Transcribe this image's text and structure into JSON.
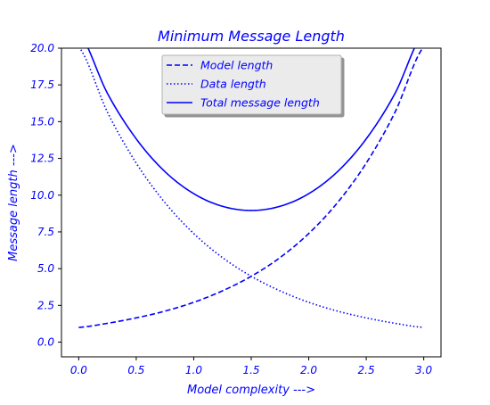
{
  "chart_data": {
    "type": "line",
    "title": "Minimum Message Length",
    "xlabel": "Model complexity --->",
    "ylabel": "Message length --->",
    "xlim": [
      -0.15,
      3.15
    ],
    "ylim": [
      -1.0,
      20.0
    ],
    "xticks": [
      {
        "value": 0.0,
        "label": "0.0"
      },
      {
        "value": 0.5,
        "label": "0.5"
      },
      {
        "value": 1.0,
        "label": "1.0"
      },
      {
        "value": 1.5,
        "label": "1.5"
      },
      {
        "value": 2.0,
        "label": "2.0"
      },
      {
        "value": 2.5,
        "label": "2.5"
      },
      {
        "value": 3.0,
        "label": "3.0"
      }
    ],
    "yticks": [
      {
        "value": 0.0,
        "label": "0.0"
      },
      {
        "value": 2.5,
        "label": "2.5"
      },
      {
        "value": 5.0,
        "label": "5.0"
      },
      {
        "value": 7.5,
        "label": "7.5"
      },
      {
        "value": 10.0,
        "label": "10.0"
      },
      {
        "value": 12.5,
        "label": "12.5"
      },
      {
        "value": 15.0,
        "label": "15.0"
      },
      {
        "value": 17.5,
        "label": "17.5"
      },
      {
        "value": 20.0,
        "label": "20.0"
      }
    ],
    "grid": false,
    "legend_position": "top-center",
    "color": "#0000ff",
    "x": [
      0.0,
      0.25,
      0.5,
      0.75,
      1.0,
      1.25,
      1.5,
      1.75,
      2.0,
      2.25,
      2.5,
      2.75,
      3.0
    ],
    "series": [
      {
        "name": "Model length",
        "style": "dashed",
        "values": [
          1.0,
          1.28,
          1.65,
          2.11,
          2.71,
          3.49,
          4.48,
          5.75,
          7.39,
          9.49,
          12.18,
          15.64,
          20.09
        ]
      },
      {
        "name": "Data length",
        "style": "dotted",
        "values": [
          20.09,
          15.64,
          12.18,
          9.49,
          7.39,
          5.75,
          4.48,
          3.49,
          2.71,
          2.11,
          1.65,
          1.28,
          1.0
        ]
      },
      {
        "name": "Total message length",
        "style": "solid",
        "values": [
          21.09,
          16.92,
          13.83,
          11.6,
          10.1,
          9.24,
          8.96,
          9.24,
          10.1,
          11.6,
          13.83,
          16.92,
          21.09
        ]
      }
    ]
  }
}
